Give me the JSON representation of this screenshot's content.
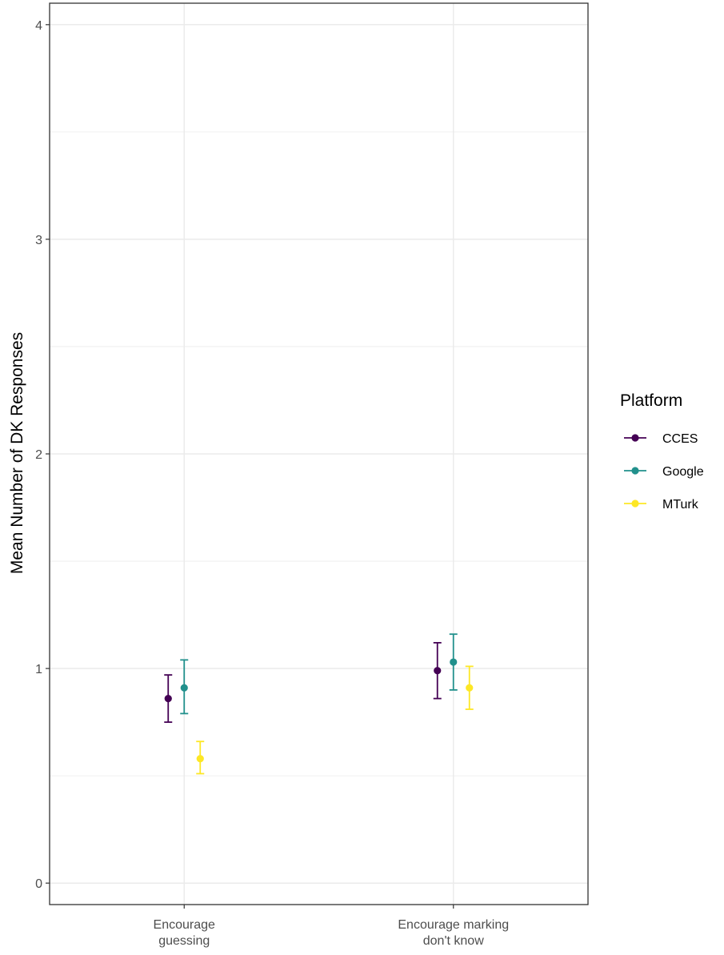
{
  "chart_data": {
    "type": "scatter",
    "title": "",
    "xlabel": "",
    "ylabel": "Mean Number of DK Responses",
    "ylim": [
      -0.1,
      4.1
    ],
    "yticks": [
      0,
      1,
      2,
      3,
      4
    ],
    "ytick_labels": [
      "0",
      "1",
      "2",
      "3",
      "4"
    ],
    "grid": true,
    "legend_placement": "right",
    "legend_title": "Platform",
    "categories": [
      "Encourage\nguessing",
      "Encourage marking\ndon't know"
    ],
    "series": [
      {
        "name": "CCES",
        "color": "#440154",
        "values": [
          0.86,
          0.99
        ],
        "lower": [
          0.75,
          0.86
        ],
        "upper": [
          0.97,
          1.12
        ]
      },
      {
        "name": "Google",
        "color": "#21908C",
        "values": [
          0.91,
          1.03
        ],
        "lower": [
          0.79,
          0.9
        ],
        "upper": [
          1.04,
          1.16
        ]
      },
      {
        "name": "MTurk",
        "color": "#FDE725",
        "values": [
          0.58,
          0.91
        ],
        "lower": [
          0.51,
          0.81
        ],
        "upper": [
          0.66,
          1.01
        ]
      }
    ]
  }
}
